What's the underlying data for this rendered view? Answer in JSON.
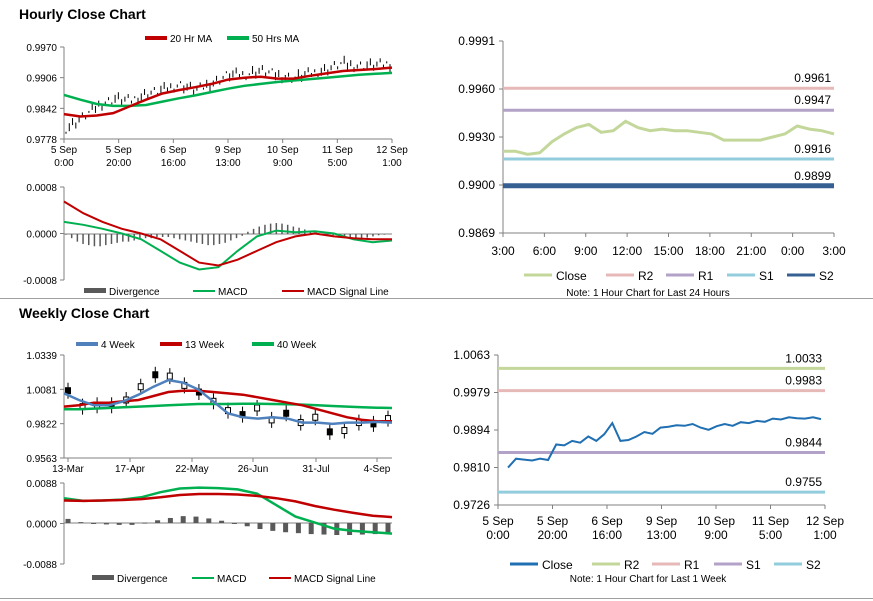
{
  "sections": {
    "hourly_title": "Hourly Close Chart",
    "weekly_title": "Weekly Close Chart"
  },
  "chart_data": [
    {
      "id": "hourly-price",
      "type": "line",
      "title": "",
      "ylim": [
        0.9778,
        0.997
      ],
      "yticks": [
        "0.9970",
        "0.9906",
        "0.9842",
        "0.9778"
      ],
      "xticks": [
        [
          "5 Sep",
          "0:00"
        ],
        [
          "5 Sep",
          "20:00"
        ],
        [
          "6 Sep",
          "16:00"
        ],
        [
          "9 Sep",
          "13:00"
        ],
        [
          "10 Sep",
          "9:00"
        ],
        [
          "11 Sep",
          "5:00"
        ],
        [
          "12 Sep",
          "1:00"
        ]
      ],
      "legend": [
        "20 Hr MA",
        "50 Hrs MA"
      ],
      "colors": {
        "ma20": "#c00000",
        "ma50": "#00b050",
        "price": "#000000"
      },
      "series": [
        {
          "name": "20 Hr MA",
          "values": [
            0.983,
            0.9825,
            0.9827,
            0.9832,
            0.9846,
            0.986,
            0.9873,
            0.988,
            0.9886,
            0.9893,
            0.9902,
            0.9906,
            0.9908,
            0.9904,
            0.9904,
            0.991,
            0.9915,
            0.992,
            0.9922,
            0.9924,
            0.9927
          ]
        },
        {
          "name": "50 Hrs MA",
          "values": [
            0.987,
            0.986,
            0.9851,
            0.9847,
            0.9847,
            0.9849,
            0.9856,
            0.9863,
            0.9869,
            0.9876,
            0.9883,
            0.9889,
            0.9893,
            0.9897,
            0.99,
            0.9903,
            0.9906,
            0.9909,
            0.9912,
            0.9914,
            0.9916
          ]
        },
        {
          "name": "Price",
          "values": [
            0.98,
            0.9822,
            0.9848,
            0.9862,
            0.9858,
            0.9873,
            0.988,
            0.9892,
            0.988,
            0.9894,
            0.9912,
            0.9912,
            0.9921,
            0.9912,
            0.9905,
            0.9914,
            0.9922,
            0.9935,
            0.9931,
            0.9932,
            0.9935
          ]
        }
      ]
    },
    {
      "id": "hourly-macd",
      "type": "bar",
      "title": "",
      "ylim": [
        -0.0008,
        0.0008
      ],
      "yticks": [
        "0.0008",
        "0.0000",
        "-0.0008"
      ],
      "legend": [
        "Divergence",
        "MACD",
        "MACD Signal Line"
      ],
      "colors": {
        "divergence": "#595959",
        "macd": "#00b050",
        "signal": "#c00000"
      },
      "divergence": [
        -2e-05,
        -8e-05,
        -0.00014,
        -0.00018,
        -0.0002,
        -0.00022,
        -0.00022,
        -0.0002,
        -0.00018,
        -0.00016,
        -0.00014,
        -0.00014,
        -0.00012,
        -0.0001,
        -8e-05,
        -8e-05,
        -6e-05,
        -6e-05,
        -6e-05,
        -8e-05,
        -0.0001,
        -0.00012,
        -0.00014,
        -0.00016,
        -0.00018,
        -0.0002,
        -0.0002,
        -0.00018,
        -0.00016,
        -0.00012,
        -8e-05,
        -4e-05,
        3e-05,
        8e-05,
        0.00012,
        0.00015,
        0.00017,
        0.00018,
        0.00017,
        0.00015,
        0.00012,
        0.0001,
        7e-05,
        4e-05,
        2e-05,
        0.0,
        -2e-05,
        -3e-05,
        -5e-05,
        -7e-05,
        -9e-05,
        -0.0001,
        -9e-05,
        -7e-05,
        -5e-05,
        -3e-05,
        -2e-05,
        -1e-05
      ],
      "series": [
        {
          "name": "MACD",
          "values": [
            0.0002,
            0.00015,
            8e-05,
            0.0,
            -0.0001,
            -0.0003,
            -0.0005,
            -0.00062,
            -0.00058,
            -0.0003,
            -5e-05,
            5e-05,
            2e-05,
            4e-05,
            0.0,
            -0.0001,
            -0.00015,
            -0.00012
          ]
        },
        {
          "name": "MACD Signal Line",
          "values": [
            0.00055,
            0.00035,
            0.0002,
            8e-05,
            0.0,
            -0.0001,
            -0.0003,
            -0.0005,
            -0.00055,
            -0.00045,
            -0.0003,
            -0.00015,
            -5e-05,
            0.0,
            -5e-05,
            -8e-05,
            -0.0001,
            -0.0001
          ]
        }
      ]
    },
    {
      "id": "hourly-24h",
      "type": "line",
      "title": "",
      "ylim": [
        0.9869,
        0.9991
      ],
      "yticks": [
        "0.9991",
        "0.9960",
        "0.9930",
        "0.9900",
        "0.9869"
      ],
      "xticks": [
        "3:00",
        "6:00",
        "9:00",
        "12:00",
        "15:00",
        "18:00",
        "21:00",
        "0:00",
        "3:00"
      ],
      "legend": [
        "Close",
        "R2",
        "R1",
        "S1",
        "S2"
      ],
      "colors": {
        "close": "#c4d79b",
        "r2": "#e6b9b8",
        "r1": "#b3a2c7",
        "s1": "#93cddd",
        "s2": "#366092"
      },
      "levels": [
        {
          "name": "R2",
          "value": 0.9961,
          "label": "0.9961"
        },
        {
          "name": "R1",
          "value": 0.9947,
          "label": "0.9947"
        },
        {
          "name": "S1",
          "value": 0.9916,
          "label": "0.9916"
        },
        {
          "name": "S2",
          "value": 0.9899,
          "label": "0.9899"
        }
      ],
      "series": [
        {
          "name": "Close",
          "values": [
            0.9921,
            0.9921,
            0.9919,
            0.992,
            0.9927,
            0.9932,
            0.9936,
            0.9938,
            0.9933,
            0.9934,
            0.994,
            0.9936,
            0.9934,
            0.9935,
            0.9934,
            0.9934,
            0.9933,
            0.9932,
            0.9928,
            0.9928,
            0.9928,
            0.9928,
            0.993,
            0.9932,
            0.9937,
            0.9935,
            0.9934,
            0.9932
          ]
        }
      ],
      "note": "Note: 1 Hour Chart for Last 24 Hours"
    },
    {
      "id": "weekly-price",
      "type": "line",
      "title": "",
      "ylim": [
        0.9563,
        1.0339
      ],
      "yticks": [
        "1.0339",
        "1.0081",
        "0.9822",
        "0.9563"
      ],
      "xticks": [
        "13-Mar",
        "17-Apr",
        "22-May",
        "26-Jun",
        "31-Jul",
        "4-Sep"
      ],
      "legend": [
        "4 Week",
        "13 Week",
        "40 Week"
      ],
      "colors": {
        "w4": "#4f81bd",
        "w13": "#c00000",
        "w40": "#00b050",
        "price": "#000000"
      },
      "series": [
        {
          "name": "4 Week",
          "values": [
            1.005,
            1.0,
            0.996,
            0.996,
            0.999,
            1.004,
            1.01,
            1.015,
            1.013,
            1.008,
            0.999,
            0.99,
            0.987,
            0.986,
            0.987,
            0.986,
            0.983,
            0.983,
            0.982,
            0.983,
            0.983,
            0.9835,
            0.983
          ]
        },
        {
          "name": "13 Week",
          "values": [
            0.995,
            0.996,
            0.998,
            0.998,
            0.999,
            1.0,
            1.003,
            1.006,
            1.007,
            1.007,
            1.006,
            1.005,
            1.004,
            1.002,
            1.0,
            0.998,
            0.996,
            0.993,
            0.99,
            0.987,
            0.985,
            0.984,
            0.984
          ]
        },
        {
          "name": "40 Week",
          "values": [
            0.993,
            0.993,
            0.9935,
            0.994,
            0.9945,
            0.995,
            0.9955,
            0.996,
            0.9965,
            0.997,
            0.997,
            0.997,
            0.9972,
            0.9972,
            0.997,
            0.9968,
            0.9965,
            0.996,
            0.9955,
            0.995,
            0.9945,
            0.9942,
            0.994
          ]
        },
        {
          "name": "Price",
          "values": [
            1.007,
            0.995,
            0.996,
            0.996,
            1.0,
            1.01,
            1.019,
            1.018,
            1.011,
            1.006,
            0.999,
            0.992,
            0.989,
            0.994,
            0.985,
            0.99,
            0.983,
            0.987,
            0.976,
            0.977,
            0.983,
            0.982,
            0.986
          ]
        }
      ]
    },
    {
      "id": "weekly-macd",
      "type": "bar",
      "title": "",
      "ylim": [
        -0.0088,
        0.0088
      ],
      "yticks": [
        "0.0088",
        "0.0000",
        "-0.0088"
      ],
      "legend": [
        "Divergence",
        "MACD",
        "MACD Signal Line"
      ],
      "colors": {
        "divergence": "#595959",
        "macd": "#00b050",
        "signal": "#c00000"
      },
      "divergence": [
        0.001,
        0.0003,
        0.0001,
        -0.0002,
        -0.0003,
        -0.0003,
        0.0002,
        0.0007,
        0.0012,
        0.0016,
        0.0015,
        0.0011,
        0.0006,
        0.0,
        -0.0006,
        -0.0012,
        -0.0016,
        -0.0019,
        -0.0021,
        -0.0023,
        -0.0024,
        -0.0025,
        -0.0025,
        -0.0024,
        -0.0023,
        -0.0022
      ],
      "series": [
        {
          "name": "MACD",
          "values": [
            0.0055,
            0.0049,
            0.005,
            0.0052,
            0.0057,
            0.0068,
            0.0076,
            0.0078,
            0.0077,
            0.0074,
            0.0065,
            0.004,
            0.0015,
            0.0002,
            -0.0011,
            -0.0016,
            -0.0019,
            -0.0022
          ]
        },
        {
          "name": "MACD Signal Line",
          "values": [
            0.005,
            0.0049,
            0.005,
            0.0051,
            0.0053,
            0.0057,
            0.0062,
            0.0064,
            0.0064,
            0.0063,
            0.006,
            0.0055,
            0.0048,
            0.0038,
            0.003,
            0.0023,
            0.0017,
            0.0014
          ]
        }
      ]
    },
    {
      "id": "weekly-1w",
      "type": "line",
      "title": "",
      "ylim": [
        0.9726,
        1.0063
      ],
      "yticks": [
        "1.0063",
        "0.9979",
        "0.9894",
        "0.9810",
        "0.9726"
      ],
      "xticks": [
        [
          "5 Sep",
          "0:00"
        ],
        [
          "5 Sep",
          "20:00"
        ],
        [
          "6 Sep",
          "16:00"
        ],
        [
          "9 Sep",
          "13:00"
        ],
        [
          "10 Sep",
          "9:00"
        ],
        [
          "11 Sep",
          "5:00"
        ],
        [
          "12 Sep",
          "1:00"
        ]
      ],
      "legend": [
        "Close",
        "R2",
        "R1",
        "S1",
        "S2"
      ],
      "colors": {
        "close": "#1f6fb2",
        "r2": "#c4d79b",
        "r1": "#e6b9b8",
        "s1": "#b3a2c7",
        "s2": "#93cddd"
      },
      "levels": [
        {
          "name": "R2",
          "value": 1.0033,
          "label": "1.0033"
        },
        {
          "name": "R1",
          "value": 0.9983,
          "label": "0.9983"
        },
        {
          "name": "S1",
          "value": 0.9844,
          "label": "0.9844"
        },
        {
          "name": "S2",
          "value": 0.9755,
          "label": "0.9755"
        }
      ],
      "series": [
        {
          "name": "Close",
          "values": [
            0.981,
            0.983,
            0.9828,
            0.9826,
            0.983,
            0.9827,
            0.9862,
            0.986,
            0.987,
            0.9866,
            0.988,
            0.987,
            0.9885,
            0.991,
            0.987,
            0.9872,
            0.988,
            0.989,
            0.9886,
            0.99,
            0.9902,
            0.9905,
            0.9904,
            0.9908,
            0.99,
            0.9895,
            0.9903,
            0.9908,
            0.9904,
            0.9912,
            0.991,
            0.9915,
            0.9913,
            0.992,
            0.9918,
            0.9923,
            0.9921,
            0.992,
            0.9923,
            0.9919
          ]
        }
      ],
      "note": "Note: 1 Hour Chart for Last 1 Week"
    }
  ]
}
